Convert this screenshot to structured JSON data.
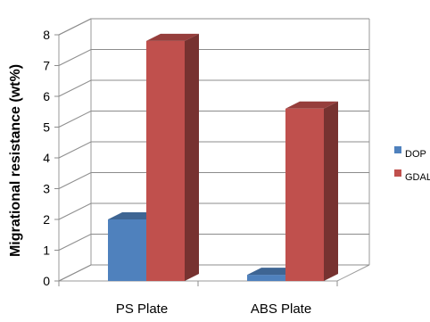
{
  "chart_data": {
    "type": "bar",
    "style": "3d-clustered-column",
    "categories": [
      "PS Plate",
      "ABS Plate"
    ],
    "series": [
      {
        "name": "DOP",
        "values": [
          2.0,
          0.2
        ],
        "color": "#4f81bd"
      },
      {
        "name": "GDAL",
        "values": [
          7.8,
          5.6
        ],
        "color": "#c0504d"
      }
    ],
    "xlabel": "",
    "ylabel": "Migrational resistance (wt%)",
    "ylim": [
      0,
      8
    ],
    "yticks": [
      "0",
      "1",
      "2",
      "3",
      "4",
      "5",
      "6",
      "7",
      "8"
    ],
    "grid": true,
    "legend_position": "right"
  }
}
